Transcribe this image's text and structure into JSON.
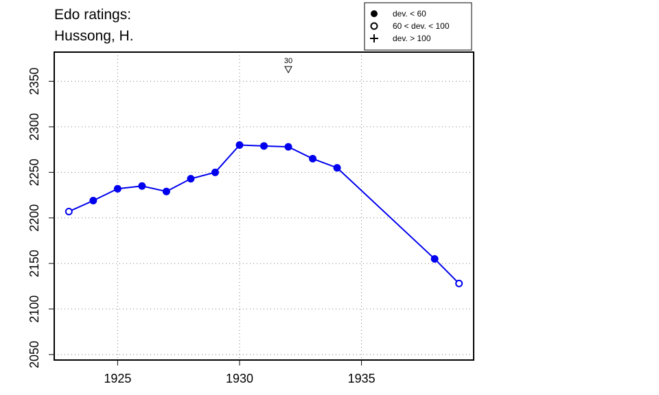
{
  "chart_data": {
    "type": "line",
    "title_lines": [
      "Edo ratings:",
      "Hussong, H."
    ],
    "xlabel": "",
    "ylabel": "",
    "xlim": [
      1922.4,
      1939.6
    ],
    "ylim": [
      2044,
      2382
    ],
    "x_ticks": [
      1925,
      1930,
      1935
    ],
    "y_ticks": [
      2050,
      2100,
      2150,
      2200,
      2250,
      2300,
      2350
    ],
    "grid": true,
    "series": [
      {
        "color": "#0000ee",
        "points": [
          {
            "x": 1923,
            "y": 2207,
            "marker": "open"
          },
          {
            "x": 1924,
            "y": 2219,
            "marker": "filled"
          },
          {
            "x": 1925,
            "y": 2232,
            "marker": "filled"
          },
          {
            "x": 1926,
            "y": 2235,
            "marker": "filled"
          },
          {
            "x": 1927,
            "y": 2229,
            "marker": "filled"
          },
          {
            "x": 1928,
            "y": 2243,
            "marker": "filled"
          },
          {
            "x": 1929,
            "y": 2250,
            "marker": "filled"
          },
          {
            "x": 1930,
            "y": 2280,
            "marker": "filled"
          },
          {
            "x": 1931,
            "y": 2279,
            "marker": "filled"
          },
          {
            "x": 1932,
            "y": 2278,
            "marker": "filled"
          },
          {
            "x": 1933,
            "y": 2265,
            "marker": "filled"
          },
          {
            "x": 1934,
            "y": 2255,
            "marker": "filled"
          },
          {
            "x": 1938,
            "y": 2155,
            "marker": "filled"
          },
          {
            "x": 1939,
            "y": 2128,
            "marker": "open"
          }
        ]
      }
    ],
    "annotations": [
      {
        "x": 1932,
        "label": "30",
        "marker": "down-triangle"
      }
    ],
    "legend": {
      "placement": "top-right",
      "entries": [
        {
          "marker": "filled",
          "label": "dev. < 60"
        },
        {
          "marker": "open",
          "label": "60 < dev. < 100"
        },
        {
          "marker": "plus",
          "label": "dev. > 100"
        }
      ]
    }
  }
}
